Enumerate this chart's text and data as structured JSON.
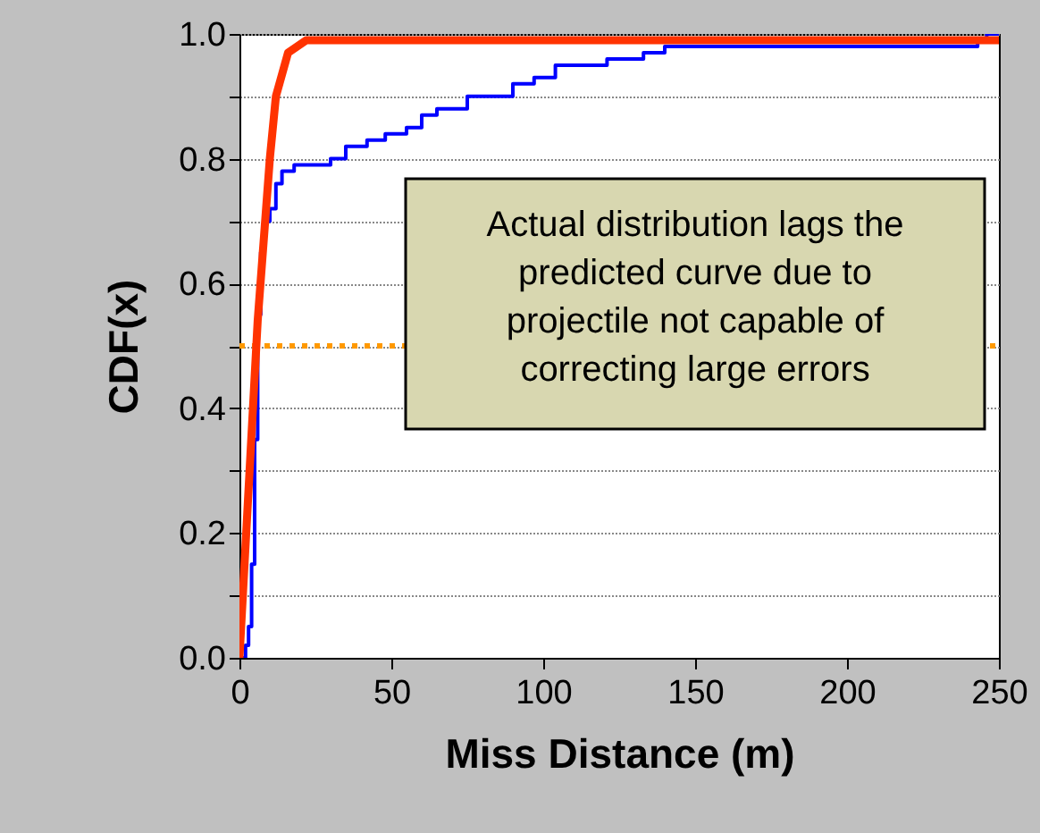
{
  "chart_data": {
    "type": "line",
    "xlabel": "Miss Distance (m)",
    "ylabel": "CDF(x)",
    "xlim": [
      0,
      250
    ],
    "xticks": [
      0,
      50,
      100,
      150,
      200,
      250
    ],
    "ylim": [
      0,
      1
    ],
    "yticks": [
      {
        "value": 0,
        "label": "0.0"
      },
      {
        "value": 0.1,
        "label": null
      },
      0.2,
      {
        "value": 0.3,
        "label": null
      },
      0.4,
      {
        "value": 0.5,
        "label": null
      },
      0.6,
      {
        "value": 0.7,
        "label": null
      },
      0.8,
      {
        "value": 0.9,
        "label": null
      },
      {
        "value": 1,
        "label": "1.0"
      }
    ],
    "grid": "y",
    "series": [
      {
        "type": "step",
        "color": "#0000ff",
        "x": [
          0,
          2,
          3,
          4,
          5,
          6,
          7,
          8,
          10,
          12,
          14,
          18,
          25,
          30,
          35,
          42,
          48,
          55,
          60,
          65,
          75,
          82,
          90,
          97,
          104,
          121,
          133,
          140,
          206,
          243,
          246,
          250
        ],
        "values": [
          0,
          0.02,
          0.05,
          0.15,
          0.35,
          0.55,
          0.65,
          0.7,
          0.72,
          0.76,
          0.78,
          0.79,
          0.79,
          0.8,
          0.82,
          0.83,
          0.84,
          0.85,
          0.87,
          0.88,
          0.9,
          0.9,
          0.92,
          0.93,
          0.95,
          0.96,
          0.97,
          0.98,
          0.98,
          0.99,
          1,
          1
        ]
      },
      {
        "type": "line",
        "color": "#ff3300",
        "x": [
          0,
          6,
          10,
          12,
          16,
          22,
          250
        ],
        "values": [
          0,
          0.54,
          0.8,
          0.9,
          0.97,
          0.99,
          0.99
        ]
      }
    ],
    "ref_lines": [
      {
        "axis": "y",
        "value": 0.5,
        "color": "#ff9900",
        "line_style": "dotted"
      }
    ],
    "annotations": [
      "Actual distribution lags the predicted curve due to projectile not capable of correcting large errors"
    ]
  }
}
